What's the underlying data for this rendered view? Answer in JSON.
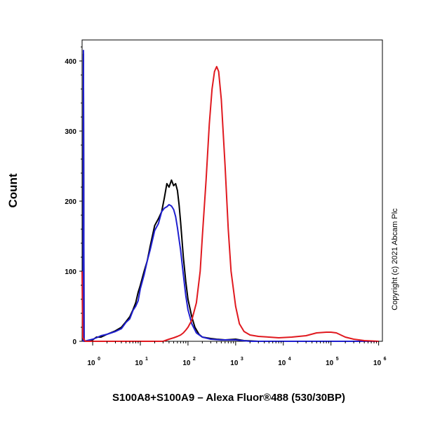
{
  "chart_data": {
    "type": "line",
    "title": "",
    "xlabel": "S100A8+S100A9 – Alexa Fluor®488 (530/30BP)",
    "ylabel": "Count",
    "x_scale": "log",
    "xlim": [
      0.6,
      1200000
    ],
    "ylim": [
      0,
      430
    ],
    "x_ticks": [
      {
        "value": 1,
        "base": "10",
        "exp": "0"
      },
      {
        "value": 10,
        "base": "10",
        "exp": "1"
      },
      {
        "value": 100,
        "base": "10",
        "exp": "2"
      },
      {
        "value": 1000,
        "base": "10",
        "exp": "3"
      },
      {
        "value": 10000,
        "base": "10",
        "exp": "4"
      },
      {
        "value": 100000,
        "base": "10",
        "exp": "5"
      },
      {
        "value": 1000000,
        "base": "10",
        "exp": "6"
      }
    ],
    "y_ticks": [
      {
        "value": 0,
        "label": "0"
      },
      {
        "value": 100,
        "label": "100"
      },
      {
        "value": 200,
        "label": "200"
      },
      {
        "value": 300,
        "label": "300"
      },
      {
        "value": 400,
        "label": "400"
      }
    ],
    "grid": false,
    "legend": "none",
    "annotation": "Copyright (c) 2021 Abcam Plc",
    "series": [
      {
        "color": "#000000",
        "points": [
          [
            0.63,
            0
          ],
          [
            0.64,
            410
          ],
          [
            0.66,
            0
          ],
          [
            1.0,
            2
          ],
          [
            1.2,
            6
          ],
          [
            1.5,
            6
          ],
          [
            2,
            10
          ],
          [
            3,
            15
          ],
          [
            4,
            20
          ],
          [
            5,
            28
          ],
          [
            6,
            35
          ],
          [
            7,
            45
          ],
          [
            8,
            55
          ],
          [
            9,
            70
          ],
          [
            10,
            80
          ],
          [
            12,
            100
          ],
          [
            14,
            115
          ],
          [
            16,
            135
          ],
          [
            20,
            165
          ],
          [
            24,
            175
          ],
          [
            28,
            185
          ],
          [
            32,
            205
          ],
          [
            36,
            225
          ],
          [
            40,
            220
          ],
          [
            45,
            230
          ],
          [
            50,
            222
          ],
          [
            55,
            225
          ],
          [
            60,
            215
          ],
          [
            65,
            195
          ],
          [
            70,
            170
          ],
          [
            80,
            120
          ],
          [
            90,
            85
          ],
          [
            100,
            60
          ],
          [
            120,
            35
          ],
          [
            140,
            20
          ],
          [
            170,
            10
          ],
          [
            200,
            6
          ],
          [
            300,
            4
          ],
          [
            400,
            3
          ],
          [
            600,
            2
          ],
          [
            1000,
            3
          ],
          [
            1500,
            1
          ],
          [
            3000,
            0
          ],
          [
            1000000,
            0
          ]
        ]
      },
      {
        "color": "#1f1fd0",
        "points": [
          [
            0.63,
            0
          ],
          [
            0.64,
            415
          ],
          [
            0.66,
            0
          ],
          [
            1.0,
            3
          ],
          [
            1.2,
            5
          ],
          [
            1.5,
            8
          ],
          [
            2,
            10
          ],
          [
            3,
            14
          ],
          [
            4,
            18
          ],
          [
            5,
            27
          ],
          [
            6,
            32
          ],
          [
            7,
            44
          ],
          [
            8,
            50
          ],
          [
            9,
            58
          ],
          [
            10,
            75
          ],
          [
            12,
            95
          ],
          [
            14,
            115
          ],
          [
            16,
            130
          ],
          [
            20,
            158
          ],
          [
            24,
            168
          ],
          [
            28,
            185
          ],
          [
            32,
            190
          ],
          [
            36,
            192
          ],
          [
            40,
            195
          ],
          [
            45,
            193
          ],
          [
            50,
            188
          ],
          [
            55,
            178
          ],
          [
            60,
            162
          ],
          [
            70,
            130
          ],
          [
            80,
            95
          ],
          [
            90,
            65
          ],
          [
            100,
            45
          ],
          [
            120,
            25
          ],
          [
            150,
            12
          ],
          [
            200,
            6
          ],
          [
            300,
            3
          ],
          [
            500,
            2
          ],
          [
            1000,
            2
          ],
          [
            2000,
            0
          ],
          [
            1000000,
            0
          ]
        ]
      },
      {
        "color": "#e0191f",
        "points": [
          [
            0.6,
            100
          ],
          [
            0.61,
            40
          ],
          [
            0.62,
            5
          ],
          [
            0.7,
            0
          ],
          [
            30,
            0
          ],
          [
            40,
            3
          ],
          [
            50,
            5
          ],
          [
            60,
            7
          ],
          [
            70,
            9
          ],
          [
            80,
            12
          ],
          [
            90,
            16
          ],
          [
            100,
            20
          ],
          [
            120,
            30
          ],
          [
            150,
            55
          ],
          [
            180,
            100
          ],
          [
            200,
            150
          ],
          [
            240,
            230
          ],
          [
            280,
            310
          ],
          [
            320,
            360
          ],
          [
            360,
            385
          ],
          [
            400,
            392
          ],
          [
            440,
            385
          ],
          [
            500,
            345
          ],
          [
            600,
            250
          ],
          [
            700,
            160
          ],
          [
            800,
            100
          ],
          [
            1000,
            50
          ],
          [
            1200,
            25
          ],
          [
            1500,
            14
          ],
          [
            2000,
            9
          ],
          [
            3000,
            7
          ],
          [
            5000,
            6
          ],
          [
            8000,
            5
          ],
          [
            15000,
            6
          ],
          [
            30000,
            8
          ],
          [
            50000,
            12
          ],
          [
            80000,
            13
          ],
          [
            100000,
            13
          ],
          [
            130000,
            12
          ],
          [
            200000,
            6
          ],
          [
            300000,
            3
          ],
          [
            500000,
            1
          ],
          [
            1000000,
            0
          ]
        ]
      }
    ]
  }
}
